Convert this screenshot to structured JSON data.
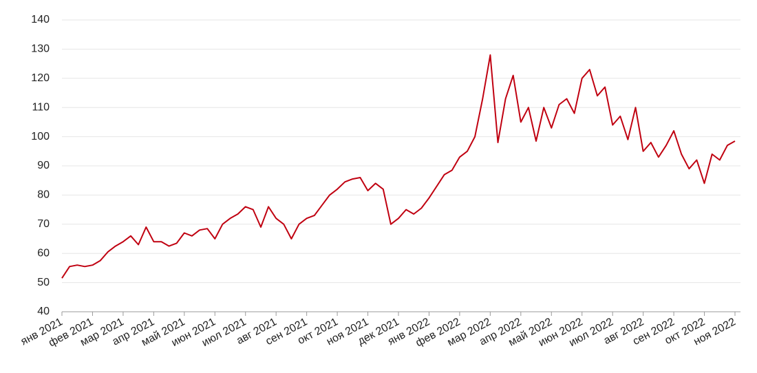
{
  "chart_data": {
    "type": "line",
    "color": "#c00010",
    "grid": true,
    "categories": [
      "янв 2021",
      null,
      null,
      null,
      "фев 2021",
      null,
      null,
      null,
      "мар 2021",
      null,
      null,
      null,
      "апр 2021",
      null,
      null,
      null,
      "май 2021",
      null,
      null,
      null,
      "июн 2021",
      null,
      null,
      null,
      "июл 2021",
      null,
      null,
      null,
      "авг 2021",
      null,
      null,
      null,
      "сен 2021",
      null,
      null,
      null,
      "окт 2021",
      null,
      null,
      null,
      "ноя 2021",
      null,
      null,
      null,
      "дек 2021",
      null,
      null,
      null,
      "янв 2022",
      null,
      null,
      null,
      "фев 2022",
      null,
      null,
      null,
      "мар 2022",
      null,
      null,
      null,
      "апр 2022",
      null,
      null,
      null,
      "май 2022",
      null,
      null,
      null,
      "июн 2022",
      null,
      null,
      null,
      "июл 2022",
      null,
      null,
      null,
      "авг 2022",
      null,
      null,
      null,
      "сен 2022",
      null,
      null,
      null,
      "окт 2022",
      null,
      null,
      null,
      "ноя 2022"
    ],
    "values": [
      51.5,
      55.5,
      56,
      55.5,
      56,
      57.5,
      60.5,
      62.5,
      64,
      66,
      63,
      69,
      64,
      64,
      62.5,
      63.5,
      67,
      66,
      68,
      68.5,
      65,
      70,
      72,
      73.5,
      76,
      75,
      69,
      76,
      72,
      70,
      65,
      70,
      72,
      73,
      76.5,
      80,
      82,
      84.5,
      85.5,
      86,
      81.5,
      84,
      82,
      70,
      72,
      75,
      73.5,
      75.5,
      79,
      83,
      87,
      88.5,
      93,
      95,
      100,
      113,
      128,
      98,
      113,
      121,
      105,
      110,
      98.5,
      110,
      103,
      111,
      113,
      108,
      120,
      123,
      114,
      117,
      104,
      107,
      99,
      110,
      95,
      98,
      93,
      97,
      102,
      94,
      89,
      92,
      84,
      94,
      92,
      97,
      98.5
    ],
    "ylim": [
      40,
      140
    ],
    "yticks": [
      40,
      50,
      60,
      70,
      80,
      90,
      100,
      110,
      120,
      130,
      140
    ]
  }
}
